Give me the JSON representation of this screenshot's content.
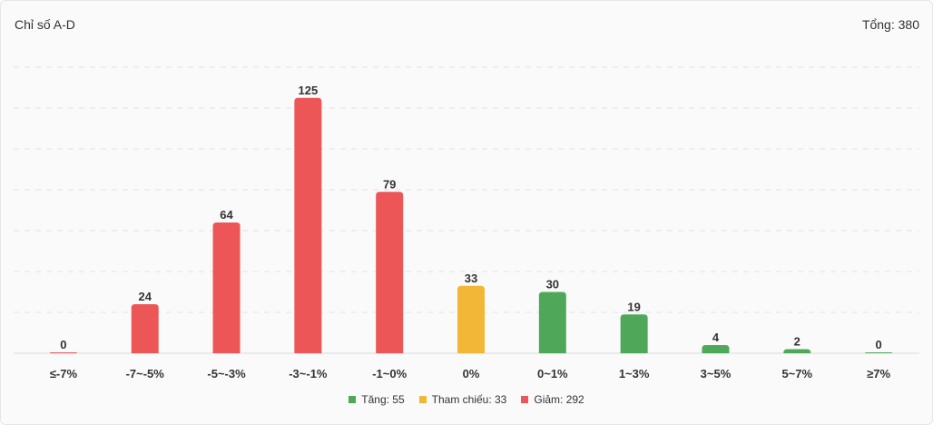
{
  "header": {
    "title": "Chỉ số A-D",
    "total": "Tổng: 380"
  },
  "colors": {
    "up": "#4fa85a",
    "ref": "#f2b736",
    "down": "#ec5656"
  },
  "legend": [
    {
      "label": "Tăng: 55",
      "color": "#4fa85a"
    },
    {
      "label": "Tham chiếu: 33",
      "color": "#f2b736"
    },
    {
      "label": "Giảm: 292",
      "color": "#ec5656"
    }
  ],
  "chart_data": {
    "type": "bar",
    "categories": [
      "≤-7%",
      "-7~-5%",
      "-5~-3%",
      "-3~-1%",
      "-1~0%",
      "0%",
      "0~1%",
      "1~3%",
      "3~5%",
      "5~7%",
      "≥7%"
    ],
    "values": [
      0,
      24,
      64,
      125,
      79,
      33,
      30,
      19,
      4,
      2,
      0
    ],
    "bar_colors": [
      "#ec5656",
      "#ec5656",
      "#ec5656",
      "#ec5656",
      "#ec5656",
      "#f2b736",
      "#4fa85a",
      "#4fa85a",
      "#4fa85a",
      "#4fa85a",
      "#4fa85a"
    ],
    "ylim": [
      0,
      140
    ],
    "grid": true,
    "legend_position": "bottom-center"
  }
}
